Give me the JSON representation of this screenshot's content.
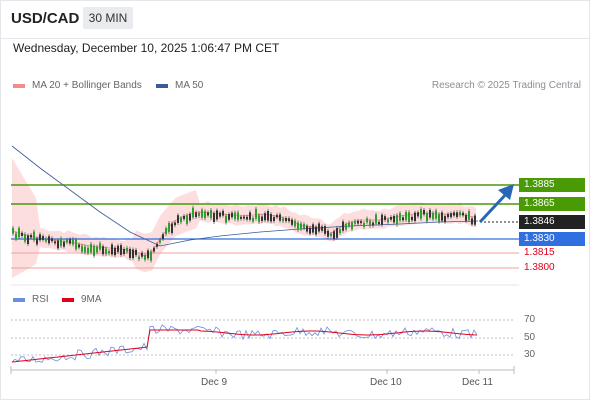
{
  "header": {
    "symbol": "USD/CAD",
    "timeframe": "30 MIN"
  },
  "timestamp": "Wednesday, December 10, 2025 1:06:47 PM CET",
  "legend": {
    "bollinger": "MA 20 + Bollinger Bands",
    "ma50": "MA 50",
    "copyright": "Research © 2025 Trading Central",
    "rsi": "RSI",
    "rsi_ma": "9MA"
  },
  "levels": {
    "r2": "1.3885",
    "r1": "1.3865",
    "last": "1.3846",
    "pivot": "1.3830",
    "s1": "1.3815",
    "s2": "1.3800"
  },
  "rsi_levels": [
    "70",
    "50",
    "30"
  ],
  "x_labels": [
    "Dec 9",
    "Dec 10",
    "Dec 11"
  ],
  "colors": {
    "resistance": "#4a9a06",
    "pivot": "#2f6fe0",
    "support": "#e0001b",
    "last": "#222222",
    "bollinger": "#f48a8a",
    "ma50": "#3b5a9a",
    "rsi": "#6b8ee0",
    "rsi_ma": "#e0001b"
  },
  "chart_data": {
    "type": "candlestick",
    "instrument": "USD/CAD",
    "interval": "30 MIN",
    "y_ticks": [
      1.3885,
      1.3865,
      1.3846,
      1.383,
      1.3815,
      1.38
    ],
    "last_price": 1.3846,
    "pivot": 1.383,
    "resistances": [
      1.3865,
      1.3885
    ],
    "supports": [
      1.3815,
      1.38
    ],
    "rsi_ticks": [
      70,
      50,
      30
    ],
    "x_ticks": [
      "Dec 9",
      "Dec 10",
      "Dec 11"
    ],
    "forecast": "up"
  }
}
